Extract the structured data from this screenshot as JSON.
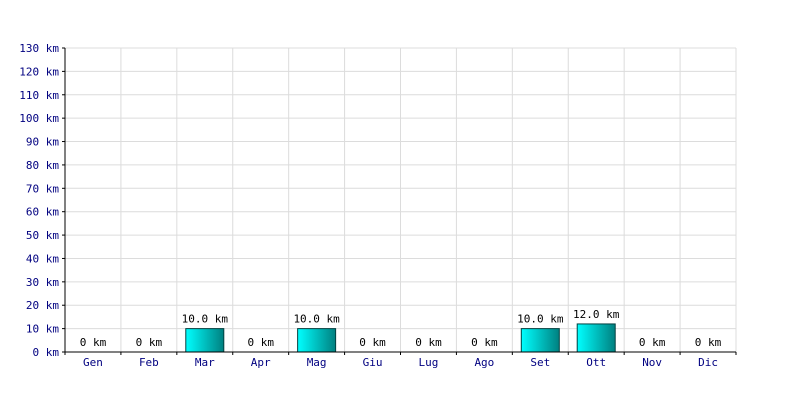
{
  "chart_data": {
    "type": "bar",
    "categories": [
      "Gen",
      "Feb",
      "Mar",
      "Apr",
      "Mag",
      "Giu",
      "Lug",
      "Ago",
      "Set",
      "Ott",
      "Nov",
      "Dic"
    ],
    "values": [
      0,
      0,
      10,
      0,
      10,
      0,
      0,
      0,
      10,
      12,
      0,
      0
    ],
    "value_labels": [
      "0 km",
      "0 km",
      "10.0 km",
      "0 km",
      "10.0 km",
      "0 km",
      "0 km",
      "0 km",
      "10.0 km",
      "12.0 km",
      "0 km",
      "0 km"
    ],
    "y_ticks": [
      "0 km",
      "10 km",
      "20 km",
      "30 km",
      "40 km",
      "50 km",
      "60 km",
      "70 km",
      "80 km",
      "90 km",
      "100 km",
      "110 km",
      "120 km",
      "130 km"
    ],
    "ylim": [
      0,
      130
    ],
    "grid": true,
    "colors": {
      "bar_light": "#00ffff",
      "bar_dark": "#008080",
      "tick_text": "#000080"
    }
  }
}
